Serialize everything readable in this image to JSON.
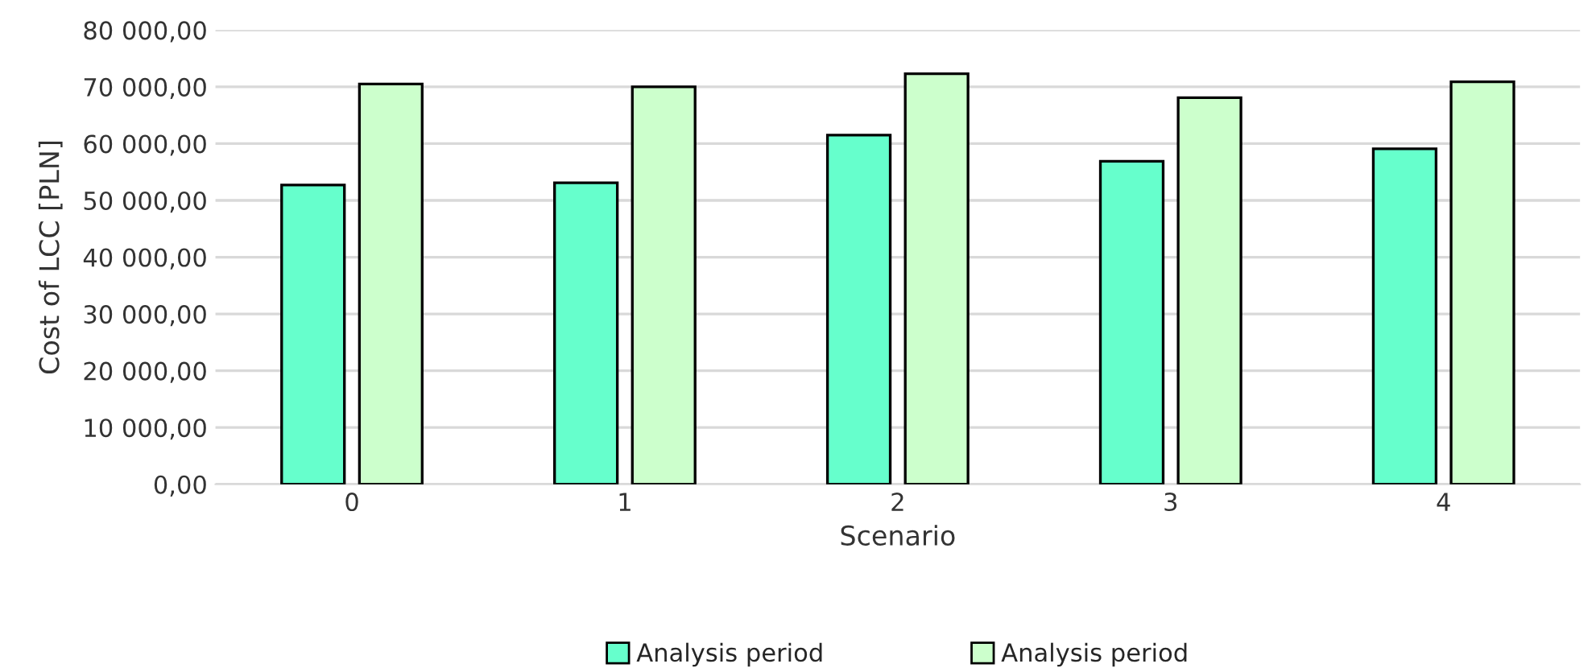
{
  "chart_data": {
    "type": "bar",
    "xlabel": "Scenario",
    "ylabel": "Cost of LCC [PLN]",
    "categories": [
      "0",
      "1",
      "2",
      "3",
      "4"
    ],
    "series": [
      {
        "name": "Analysis period",
        "color": "#66ffcc",
        "values": [
          52700,
          53100,
          61500,
          56900,
          59100
        ]
      },
      {
        "name": "Analysis period",
        "color": "#ccffcc",
        "values": [
          70500,
          70000,
          72300,
          68100,
          70900
        ]
      }
    ],
    "ylim": [
      0,
      80000
    ],
    "yticks": [
      {
        "value": 0,
        "label": "0,00"
      },
      {
        "value": 10000,
        "label": "10 000,00"
      },
      {
        "value": 20000,
        "label": "20 000,00"
      },
      {
        "value": 30000,
        "label": "30 000,00"
      },
      {
        "value": 40000,
        "label": "40 000,00"
      },
      {
        "value": 50000,
        "label": "50 000,00"
      },
      {
        "value": 60000,
        "label": "60 000,00"
      },
      {
        "value": 70000,
        "label": "70 000,00"
      },
      {
        "value": 80000,
        "label": "80 000,00"
      }
    ],
    "grid": "y",
    "legend": "bottom"
  }
}
